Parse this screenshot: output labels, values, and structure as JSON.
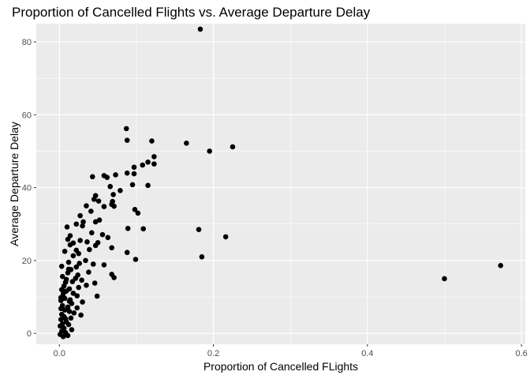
{
  "chart_data": {
    "type": "scatter",
    "title": "Proportion of Cancelled Flights vs. Average Departure Delay",
    "xlabel": "Proportion of Cancelled FLights",
    "ylabel": "Average Departure Delay",
    "xlim": [
      -0.03,
      0.605
    ],
    "ylim": [
      -3,
      85
    ],
    "x_ticks": [
      0.0,
      0.2,
      0.4,
      0.6
    ],
    "x_tick_labels": [
      "0.0",
      "0.2",
      "0.4",
      "0.6"
    ],
    "y_ticks": [
      0,
      20,
      40,
      60,
      80
    ],
    "y_tick_labels": [
      "0",
      "20",
      "40",
      "60",
      "80"
    ],
    "grid": true,
    "point_color": "#000000",
    "panel_color": "#ebebeb",
    "points": [
      [
        0.183,
        83.5
      ],
      [
        0.087,
        56.2
      ],
      [
        0.088,
        53.0
      ],
      [
        0.12,
        52.8
      ],
      [
        0.165,
        52.2
      ],
      [
        0.225,
        51.2
      ],
      [
        0.195,
        50.0
      ],
      [
        0.123,
        48.5
      ],
      [
        0.115,
        47.0
      ],
      [
        0.108,
        46.2
      ],
      [
        0.123,
        46.5
      ],
      [
        0.097,
        45.6
      ],
      [
        0.088,
        44.0
      ],
      [
        0.097,
        43.8
      ],
      [
        0.073,
        43.5
      ],
      [
        0.058,
        43.3
      ],
      [
        0.043,
        43.0
      ],
      [
        0.062,
        42.8
      ],
      [
        0.115,
        40.6
      ],
      [
        0.095,
        40.8
      ],
      [
        0.066,
        40.3
      ],
      [
        0.079,
        39.2
      ],
      [
        0.07,
        38.1
      ],
      [
        0.047,
        37.8
      ],
      [
        0.045,
        36.8
      ],
      [
        0.069,
        36.2
      ],
      [
        0.051,
        36.3
      ],
      [
        0.035,
        35.0
      ],
      [
        0.058,
        34.8
      ],
      [
        0.071,
        34.9
      ],
      [
        0.068,
        35.4
      ],
      [
        0.098,
        34.0
      ],
      [
        0.102,
        33.0
      ],
      [
        0.041,
        33.5
      ],
      [
        0.027,
        32.3
      ],
      [
        0.052,
        31.1
      ],
      [
        0.031,
        30.6
      ],
      [
        0.047,
        30.6
      ],
      [
        0.022,
        30.0
      ],
      [
        0.03,
        29.5
      ],
      [
        0.01,
        29.2
      ],
      [
        0.089,
        28.8
      ],
      [
        0.109,
        28.7
      ],
      [
        0.181,
        28.5
      ],
      [
        0.042,
        27.6
      ],
      [
        0.056,
        27.1
      ],
      [
        0.014,
        26.8
      ],
      [
        0.216,
        26.5
      ],
      [
        0.063,
        26.3
      ],
      [
        0.011,
        25.8
      ],
      [
        0.027,
        25.5
      ],
      [
        0.036,
        25.1
      ],
      [
        0.05,
        24.9
      ],
      [
        0.018,
        24.8
      ],
      [
        0.014,
        24.3
      ],
      [
        0.047,
        24.1
      ],
      [
        0.068,
        23.5
      ],
      [
        0.039,
        23.0
      ],
      [
        0.022,
        22.8
      ],
      [
        0.025,
        21.9
      ],
      [
        0.088,
        22.2
      ],
      [
        0.185,
        21.0
      ],
      [
        0.099,
        20.3
      ],
      [
        0.034,
        20.0
      ],
      [
        0.012,
        19.5
      ],
      [
        0.044,
        19.0
      ],
      [
        0.058,
        18.8
      ],
      [
        0.003,
        18.4
      ],
      [
        0.022,
        18.2
      ],
      [
        0.015,
        17.5
      ],
      [
        0.038,
        16.8
      ],
      [
        0.011,
        16.6
      ],
      [
        0.068,
        16.2
      ],
      [
        0.024,
        16.0
      ],
      [
        0.071,
        15.3
      ],
      [
        0.5,
        15.0
      ],
      [
        0.029,
        14.6
      ],
      [
        0.017,
        14.2
      ],
      [
        0.008,
        14.0
      ],
      [
        0.046,
        13.8
      ],
      [
        0.006,
        13.0
      ],
      [
        0.025,
        12.6
      ],
      [
        0.013,
        12.2
      ],
      [
        0.009,
        11.6
      ],
      [
        0.018,
        11.0
      ],
      [
        0.005,
        10.8
      ],
      [
        0.049,
        10.2
      ],
      [
        0.023,
        10.3
      ],
      [
        0.007,
        9.6
      ],
      [
        0.014,
        9.2
      ],
      [
        0.002,
        9.0
      ],
      [
        0.03,
        8.6
      ],
      [
        0.016,
        8.2
      ],
      [
        0.004,
        7.6
      ],
      [
        0.011,
        7.2
      ],
      [
        0.023,
        7.0
      ],
      [
        0.007,
        6.4
      ],
      [
        0.013,
        6.0
      ],
      [
        0.019,
        5.6
      ],
      [
        0.003,
        5.2
      ],
      [
        0.028,
        5.0
      ],
      [
        0.006,
        4.6
      ],
      [
        0.015,
        4.2
      ],
      [
        0.002,
        3.8
      ],
      [
        0.009,
        3.2
      ],
      [
        0.004,
        2.6
      ],
      [
        0.012,
        2.4
      ],
      [
        0.001,
        2.0
      ],
      [
        0.006,
        1.4
      ],
      [
        0.016,
        1.0
      ],
      [
        0.003,
        0.6
      ],
      [
        0.008,
        0.2
      ],
      [
        0.001,
        -0.3
      ],
      [
        0.011,
        -0.6
      ],
      [
        0.005,
        -0.9
      ],
      [
        0.573,
        18.6
      ],
      [
        0.003,
        12.0
      ],
      [
        0.006,
        11.5
      ],
      [
        0.002,
        9.8
      ],
      [
        0.009,
        14.8
      ],
      [
        0.004,
        15.6
      ],
      [
        0.012,
        17.6
      ],
      [
        0.018,
        21.3
      ],
      [
        0.026,
        19.2
      ],
      [
        0.007,
        22.5
      ],
      [
        0.035,
        13.2
      ],
      [
        0.021,
        15.1
      ],
      [
        0.002,
        6.8
      ],
      [
        0.008,
        4.0
      ],
      [
        0.013,
        8.8
      ]
    ]
  }
}
